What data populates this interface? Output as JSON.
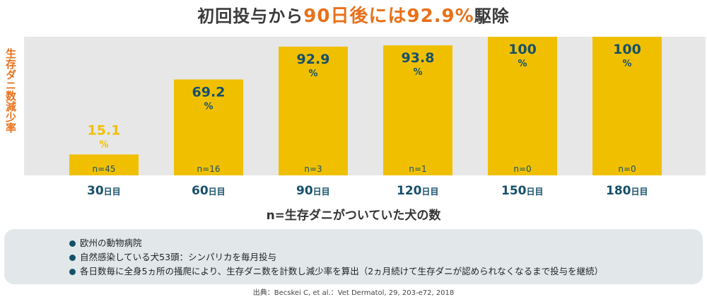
{
  "colors": {
    "bar": "#f0c000",
    "accent": "#e8711a",
    "value_text": "#16506b",
    "yellow_text": "#f0c000",
    "band": "#e7e7e7",
    "note_bullet": "#16506b"
  },
  "header": {
    "title_prefix": "初回投与から",
    "title_highlight": "90日後には92.9%",
    "title_suffix": "駆除"
  },
  "chart_data": {
    "type": "bar",
    "title": "初回投与から90日後には92.9%駆除",
    "ylabel": "生存ダニ数減少率",
    "xlabel": "n=生存ダニがついていた犬の数",
    "ylim": [
      0,
      100
    ],
    "grid": false,
    "categories": [
      "30日目",
      "60日目",
      "90日目",
      "120日目",
      "150日目",
      "180日目"
    ],
    "category_numbers": [
      "30",
      "60",
      "90",
      "120",
      "150",
      "180"
    ],
    "category_unit": "日目",
    "values": [
      15.1,
      69.2,
      92.9,
      93.8,
      100,
      100
    ],
    "value_labels": [
      "15.1",
      "69.2",
      "92.9",
      "93.8",
      "100",
      "100"
    ],
    "value_unit": "%",
    "n_labels": [
      "n=45",
      "n=16",
      "n=3",
      "n=1",
      "n=0",
      "n=0"
    ]
  },
  "notes": {
    "items": [
      "欧州の動物病院",
      "自然感染している犬53頭：シンパリカを毎月投与",
      "各日数毎に全身5ヵ所の掻爬により、生存ダニ数を計数し減少率を算出（2ヵ月続けて生存ダニが認められなくなるまで投与を継続）"
    ]
  },
  "source": "出典：Becskei C, et al.：Vet Dermatol, 29, 203-e72, 2018"
}
